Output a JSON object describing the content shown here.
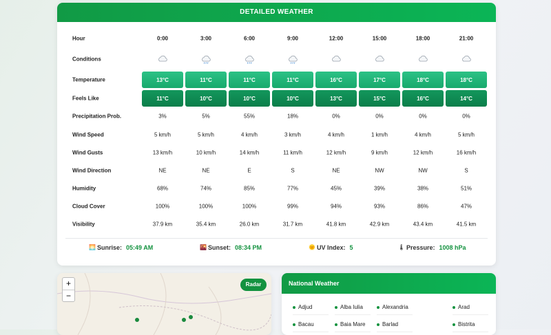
{
  "detailed": {
    "title": "DETAILED WEATHER",
    "hour_label": "Hour",
    "hours": [
      "0:00",
      "3:00",
      "6:00",
      "9:00",
      "12:00",
      "15:00",
      "18:00",
      "21:00"
    ],
    "conditions_label": "Conditions",
    "rows": [
      {
        "label": "Temperature",
        "values": [
          "13°C",
          "11°C",
          "11°C",
          "11°C",
          "16°C",
          "17°C",
          "18°C",
          "18°C"
        ]
      },
      {
        "label": "Feels Like",
        "values": [
          "11°C",
          "10°C",
          "10°C",
          "10°C",
          "13°C",
          "15°C",
          "16°C",
          "14°C"
        ]
      },
      {
        "label": "Precipitation Prob.",
        "values": [
          "3%",
          "5%",
          "55%",
          "18%",
          "0%",
          "0%",
          "0%",
          "0%"
        ]
      },
      {
        "label": "Wind Speed",
        "values": [
          "5 km/h",
          "5 km/h",
          "4 km/h",
          "3 km/h",
          "4 km/h",
          "1 km/h",
          "4 km/h",
          "5 km/h"
        ]
      },
      {
        "label": "Wind Gusts",
        "values": [
          "13 km/h",
          "10 km/h",
          "14 km/h",
          "11 km/h",
          "12 km/h",
          "9 km/h",
          "12 km/h",
          "16 km/h"
        ]
      },
      {
        "label": "Wind Direction",
        "values": [
          "NE",
          "NE",
          "E",
          "S",
          "NE",
          "NW",
          "NW",
          "S"
        ]
      },
      {
        "label": "Humidity",
        "values": [
          "68%",
          "74%",
          "85%",
          "77%",
          "45%",
          "39%",
          "38%",
          "51%"
        ]
      },
      {
        "label": "Cloud Cover",
        "values": [
          "100%",
          "100%",
          "100%",
          "99%",
          "94%",
          "93%",
          "86%",
          "47%"
        ]
      },
      {
        "label": "Visibility",
        "values": [
          "37.9 km",
          "35.4 km",
          "26.0 km",
          "31.7 km",
          "41.8 km",
          "42.9 km",
          "43.4 km",
          "41.5 km"
        ]
      }
    ],
    "summary": [
      {
        "label": "Sunrise:",
        "value": "05:49 AM"
      },
      {
        "label": "Sunset:",
        "value": "08:34 PM"
      },
      {
        "label": "UV Index:",
        "value": "5"
      },
      {
        "label": "Pressure:",
        "value": "1008 hPa"
      }
    ]
  },
  "map": {
    "zoom_in": "+",
    "zoom_out": "−",
    "radar": "Radar"
  },
  "national": {
    "title": "National Weather",
    "cities": [
      "Adjud",
      "Alba Iulia",
      "Alexandria",
      "Arad",
      "Bacau",
      "Baia Mare",
      "Barlad",
      "Bistrita"
    ]
  }
}
